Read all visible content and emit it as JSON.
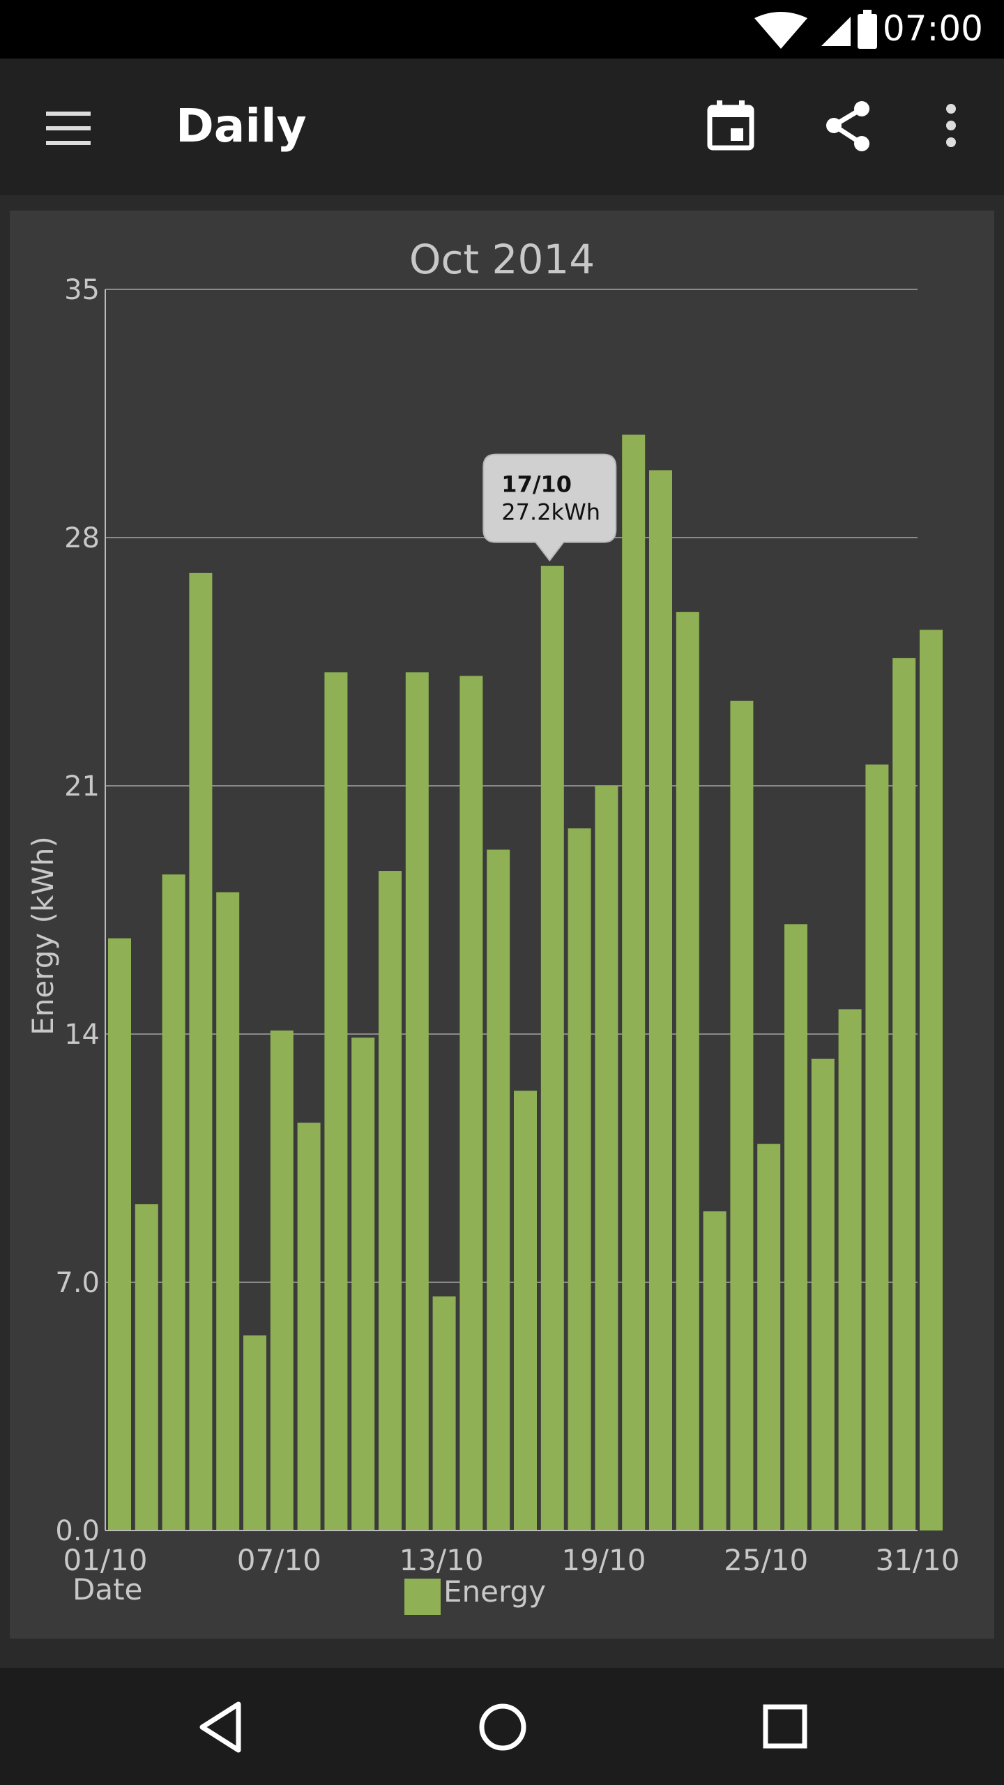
{
  "status_bar": {
    "time": "07:00",
    "icons": [
      "wifi-icon",
      "cell-signal-icon",
      "battery-icon"
    ]
  },
  "app_bar": {
    "title": "Daily",
    "actions": [
      "menu-icon",
      "calendar-icon",
      "share-icon",
      "more-vert-icon"
    ]
  },
  "tooltip": {
    "date": "17/10",
    "value": "27.2kWh"
  },
  "colors": {
    "bar": "#8fb054",
    "background": "#3a3a3a",
    "app_bar": "#212121",
    "status_bar": "#000000"
  },
  "chart_data": {
    "type": "bar",
    "title": "Oct 2014",
    "ylabel": "Energy (kWh)",
    "xlabel": "Date",
    "ylim": [
      0,
      35
    ],
    "yticks": [
      "0.0",
      "7.0",
      "14",
      "21",
      "28",
      "35"
    ],
    "ytick_values": [
      0,
      7,
      14,
      21,
      28,
      35
    ],
    "xtick_labels": [
      "01/10",
      "07/10",
      "13/10",
      "19/10",
      "25/10",
      "31/10"
    ],
    "xtick_days": [
      1,
      7,
      13,
      19,
      25,
      31
    ],
    "grid": true,
    "legend": "bottom-center",
    "series": [
      {
        "name": "Energy",
        "x": [
          1,
          2,
          3,
          4,
          5,
          6,
          7,
          8,
          9,
          10,
          11,
          12,
          13,
          14,
          15,
          16,
          17,
          18,
          19,
          20,
          21,
          22,
          23,
          24,
          25,
          26,
          27,
          28,
          29,
          30,
          31
        ],
        "values": [
          16.7,
          9.2,
          18.5,
          27.0,
          18.0,
          5.5,
          14.1,
          11.5,
          24.2,
          13.9,
          18.6,
          24.2,
          6.6,
          24.1,
          19.2,
          12.4,
          27.2,
          19.8,
          21.0,
          30.9,
          29.9,
          25.9,
          9.0,
          23.4,
          10.9,
          17.1,
          13.3,
          14.7,
          21.6,
          24.6,
          25.4
        ]
      }
    ]
  }
}
